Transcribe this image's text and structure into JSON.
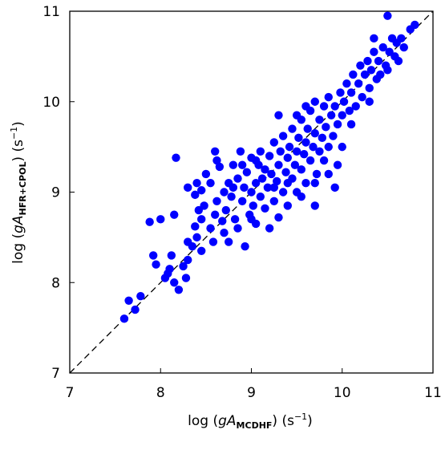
{
  "chart_data": {
    "type": "scatter",
    "color": "#0000ff",
    "xlabel_parts": [
      "log (",
      "gA",
      "MCDHF",
      ") (s",
      "−1",
      ")"
    ],
    "ylabel_parts": [
      "log (",
      "gA",
      "HFR+CPOL",
      ") (s",
      "−1",
      ")"
    ],
    "xlim": [
      7,
      11
    ],
    "ylim": [
      7,
      11
    ],
    "xticks": [
      7,
      8,
      9,
      10,
      11
    ],
    "yticks": [
      7,
      8,
      9,
      10,
      11
    ],
    "x": [
      7.6,
      7.65,
      7.72,
      7.78,
      7.92,
      7.95,
      8.05,
      8.08,
      8.1,
      8.12,
      8.15,
      8.2,
      8.25,
      8.28,
      8.3,
      7.88,
      8.0,
      8.15,
      8.17,
      8.3,
      8.35,
      8.38,
      8.4,
      8.42,
      8.45,
      8.45,
      8.48,
      8.3,
      8.38,
      8.4,
      8.45,
      8.5,
      8.55,
      8.55,
      8.58,
      8.6,
      8.6,
      8.62,
      8.65,
      8.68,
      8.7,
      8.7,
      8.72,
      8.75,
      8.75,
      8.78,
      8.8,
      8.82,
      8.85,
      8.85,
      8.88,
      8.9,
      8.92,
      8.93,
      8.95,
      8.98,
      9.0,
      9.0,
      9.02,
      9.05,
      9.05,
      9.08,
      9.1,
      9.1,
      9.12,
      9.15,
      9.15,
      9.18,
      9.2,
      9.2,
      9.22,
      9.25,
      9.25,
      9.28,
      9.3,
      9.3,
      9.32,
      9.35,
      9.35,
      9.38,
      9.4,
      9.4,
      9.42,
      9.45,
      9.45,
      9.48,
      9.5,
      9.5,
      9.52,
      9.55,
      9.55,
      9.58,
      9.6,
      9.6,
      9.62,
      9.65,
      9.65,
      9.68,
      9.7,
      9.7,
      9.72,
      9.75,
      9.75,
      9.78,
      9.8,
      9.8,
      9.82,
      9.85,
      9.85,
      9.88,
      9.9,
      9.92,
      9.92,
      9.95,
      9.98,
      10.0,
      10.0,
      10.02,
      10.05,
      10.08,
      10.1,
      10.12,
      10.15,
      10.18,
      10.2,
      10.22,
      10.25,
      10.28,
      10.3,
      10.32,
      10.35,
      10.38,
      10.4,
      10.42,
      10.45,
      10.48,
      10.5,
      10.52,
      10.55,
      10.58,
      10.6,
      10.62,
      10.65,
      10.68,
      10.75,
      10.8,
      8.62,
      8.9,
      9.05,
      9.3,
      9.5,
      9.6,
      9.7,
      10.35,
      10.5,
      9.25,
      9.0,
      9.4,
      8.8,
      9.95,
      9.85,
      10.1,
      10.3,
      9.7,
      9.55
    ],
    "y": [
      7.6,
      7.8,
      7.7,
      7.85,
      8.3,
      8.2,
      8.05,
      8.1,
      8.15,
      8.3,
      8.0,
      7.92,
      8.18,
      8.05,
      8.25,
      8.67,
      8.7,
      8.75,
      9.38,
      8.45,
      8.4,
      8.62,
      8.5,
      8.8,
      8.35,
      8.7,
      8.85,
      9.05,
      8.97,
      9.1,
      9.02,
      9.2,
      9.1,
      8.6,
      8.45,
      8.75,
      9.45,
      8.9,
      9.28,
      8.68,
      8.55,
      9.0,
      8.8,
      9.1,
      8.45,
      8.95,
      9.3,
      8.7,
      9.15,
      8.6,
      9.45,
      8.9,
      9.05,
      8.4,
      9.22,
      8.75,
      9.0,
      9.38,
      8.85,
      9.1,
      8.65,
      9.3,
      8.95,
      9.45,
      9.15,
      8.82,
      9.25,
      9.05,
      9.4,
      8.6,
      9.2,
      8.9,
      9.55,
      9.12,
      9.3,
      8.72,
      9.45,
      9.0,
      9.62,
      9.22,
      9.38,
      8.85,
      9.5,
      9.15,
      9.7,
      9.3,
      9.45,
      9.0,
      9.6,
      9.25,
      9.8,
      9.42,
      9.55,
      9.1,
      9.7,
      9.35,
      9.9,
      9.5,
      9.65,
      8.85,
      9.2,
      9.8,
      9.45,
      9.6,
      9.35,
      9.95,
      9.72,
      9.5,
      10.05,
      9.85,
      9.62,
      9.05,
      9.95,
      9.75,
      10.1,
      9.85,
      9.5,
      10.0,
      10.2,
      9.9,
      10.1,
      10.3,
      9.95,
      10.2,
      10.4,
      10.05,
      10.3,
      10.45,
      10.15,
      10.35,
      10.55,
      10.25,
      10.45,
      10.3,
      10.6,
      10.4,
      10.35,
      10.55,
      10.7,
      10.5,
      10.65,
      10.45,
      10.7,
      10.6,
      10.8,
      10.85,
      9.35,
      9.3,
      9.35,
      9.85,
      9.85,
      9.95,
      10.0,
      10.7,
      10.95,
      9.05,
      8.7,
      9.1,
      9.05,
      9.3,
      9.2,
      9.75,
      10.0,
      9.1,
      8.95
    ]
  }
}
